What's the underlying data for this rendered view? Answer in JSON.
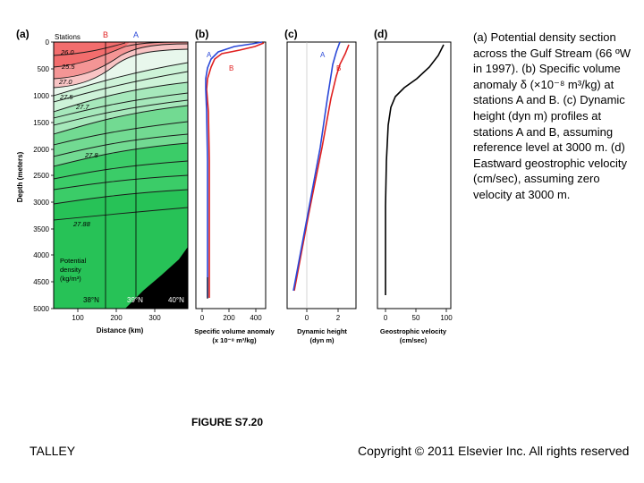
{
  "caption": "(a) Potential density section across the Gulf Stream (66 ºW in 1997). (b) Specific volume anomaly δ (×10⁻⁸ m³/kg) at stations A and B. (c) Dynamic height (dyn m) profiles at stations A and B, assuming reference level at 3000 m. (d) Eastward geostrophic velocity (cm/sec), assuming zero velocity at 3000 m.",
  "figure_label": "FIGURE S7.20",
  "author": "TALLEY",
  "copyright": "Copyright © 2011 Elsevier Inc. All rights reserved",
  "panels": {
    "a": {
      "label": "(a)",
      "stations_label": "Stations",
      "station_b": "B",
      "station_a": "A",
      "ylabel": "Depth (meters)",
      "xlabel": "Distance (km)",
      "yticks": [
        "0",
        "500",
        "1000",
        "1500",
        "2000",
        "2500",
        "3000",
        "3500",
        "4000",
        "4500",
        "5000"
      ],
      "xticks": [
        "100",
        "200",
        "300"
      ],
      "contours": [
        "26.0",
        "25.5",
        "27.0",
        "27.5",
        "27.7",
        "27.8",
        "27.88"
      ],
      "legend_line1": "Potential",
      "legend_line2": "density",
      "legend_line3": "(kg/m³)",
      "latitudes": [
        "38°N",
        "39°N",
        "40°N"
      ]
    },
    "b": {
      "label": "(b)",
      "xticks": [
        "0",
        "200",
        "400"
      ],
      "xlabel_line1": "Specific volume anomaly",
      "xlabel_line2": "(x 10⁻⁸ m³/kg)",
      "curve_a": "A",
      "curve_b": "B"
    },
    "c": {
      "label": "(c)",
      "xticks": [
        "0",
        "2"
      ],
      "xlabel_line1": "Dynamic height",
      "xlabel_line2": "(dyn m)",
      "curve_a": "A",
      "curve_b": "B"
    },
    "d": {
      "label": "(d)",
      "xticks": [
        "0",
        "50",
        "100"
      ],
      "xlabel_line1": "Geostrophic velocity",
      "xlabel_line2": "(cm/sec)"
    }
  },
  "colors": {
    "station_a": "#2a48d8",
    "station_b": "#e02020",
    "surface_density": "#f26d6d",
    "deep_density": "#2ec85a"
  }
}
